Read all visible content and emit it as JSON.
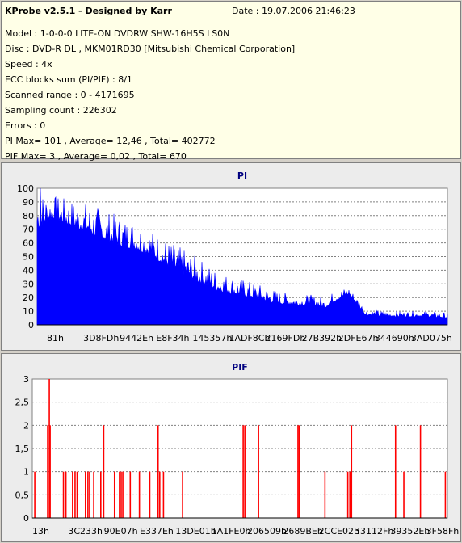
{
  "header": {
    "app_title": "KProbe v2.5.1 - Designed by Karr",
    "date": "Date : 19.07.2006 21:46:23",
    "lines": [
      "Model : 1-0-0-0 LITE-ON DVDRW SHW-16H5S  LS0N",
      "Disc : DVD-R DL , MKM01RD30 [Mitsubishi Chemical Corporation]",
      "Speed : 4x",
      "ECC blocks sum (PI/PIF) : 8/1",
      "Scanned range : 0 - 4171695",
      "Sampling count : 226302",
      "Errors : 0",
      "PI Max= 101 , Average= 12,46 , Total= 402772",
      "PIF Max= 3 , Average= 0,02 , Total= 670"
    ]
  },
  "colors": {
    "pi": "#0000ff",
    "pif": "#ff0000",
    "title": "#000080",
    "grid": "#808080"
  },
  "chart_data": [
    {
      "type": "area",
      "title": "PI",
      "ylim": [
        0,
        100
      ],
      "yticks": [
        "0",
        "10",
        "20",
        "30",
        "40",
        "50",
        "60",
        "70",
        "80",
        "90",
        "100"
      ],
      "xticks": [
        "81h",
        "3D8FDh",
        "9442Eh",
        "E8F34h",
        "145357h",
        "1ADF8Ch",
        "2169FDh",
        "27B392h",
        "2DFE67h",
        "344690h",
        "3AD075h"
      ],
      "x_position_range": [
        0,
        1
      ],
      "profile": [
        [
          0.0,
          70,
          100
        ],
        [
          0.04,
          78,
          95
        ],
        [
          0.08,
          72,
          92
        ],
        [
          0.12,
          68,
          90
        ],
        [
          0.16,
          62,
          85
        ],
        [
          0.2,
          58,
          80
        ],
        [
          0.24,
          55,
          78
        ],
        [
          0.28,
          50,
          70
        ],
        [
          0.32,
          42,
          62
        ],
        [
          0.36,
          36,
          55
        ],
        [
          0.4,
          30,
          48
        ],
        [
          0.44,
          25,
          40
        ],
        [
          0.48,
          22,
          36
        ],
        [
          0.52,
          20,
          32
        ],
        [
          0.56,
          17,
          28
        ],
        [
          0.6,
          15,
          24
        ],
        [
          0.64,
          14,
          22
        ],
        [
          0.68,
          14,
          22
        ],
        [
          0.7,
          12,
          20
        ],
        [
          0.73,
          18,
          26
        ],
        [
          0.76,
          22,
          28
        ],
        [
          0.78,
          15,
          20
        ],
        [
          0.8,
          7,
          12
        ],
        [
          0.85,
          6,
          10
        ],
        [
          0.9,
          6,
          10
        ],
        [
          0.95,
          6,
          10
        ],
        [
          1.0,
          5,
          9
        ]
      ]
    },
    {
      "type": "bar",
      "title": "PIF",
      "ylim": [
        0,
        3
      ],
      "yticks": [
        "0",
        "0,5",
        "1",
        "1,5",
        "2",
        "2,5",
        "3"
      ],
      "xticks": [
        "13h",
        "3C233h",
        "90E07h",
        "E337Eh",
        "13DE01h",
        "1A1FE0h",
        "206509h",
        "2689BEh",
        "2CCE02h",
        "33112Fh",
        "39352Eh",
        "3F58Fh"
      ],
      "x_position_range": [
        0,
        1
      ],
      "events": [
        [
          0.006,
          1
        ],
        [
          0.037,
          2
        ],
        [
          0.041,
          3
        ],
        [
          0.043,
          2
        ],
        [
          0.075,
          1
        ],
        [
          0.081,
          1
        ],
        [
          0.097,
          1
        ],
        [
          0.103,
          1
        ],
        [
          0.108,
          1
        ],
        [
          0.128,
          1
        ],
        [
          0.134,
          1
        ],
        [
          0.138,
          1
        ],
        [
          0.148,
          1
        ],
        [
          0.165,
          1
        ],
        [
          0.172,
          2
        ],
        [
          0.198,
          1
        ],
        [
          0.21,
          1
        ],
        [
          0.214,
          1
        ],
        [
          0.218,
          1
        ],
        [
          0.236,
          1
        ],
        [
          0.258,
          1
        ],
        [
          0.283,
          1
        ],
        [
          0.303,
          2
        ],
        [
          0.307,
          1
        ],
        [
          0.316,
          1
        ],
        [
          0.362,
          1
        ],
        [
          0.508,
          2
        ],
        [
          0.512,
          2
        ],
        [
          0.545,
          2
        ],
        [
          0.64,
          2
        ],
        [
          0.643,
          2
        ],
        [
          0.705,
          1
        ],
        [
          0.76,
          1
        ],
        [
          0.765,
          1
        ],
        [
          0.769,
          2
        ],
        [
          0.875,
          2
        ],
        [
          0.895,
          1
        ],
        [
          0.935,
          2
        ],
        [
          0.995,
          1
        ]
      ]
    }
  ]
}
